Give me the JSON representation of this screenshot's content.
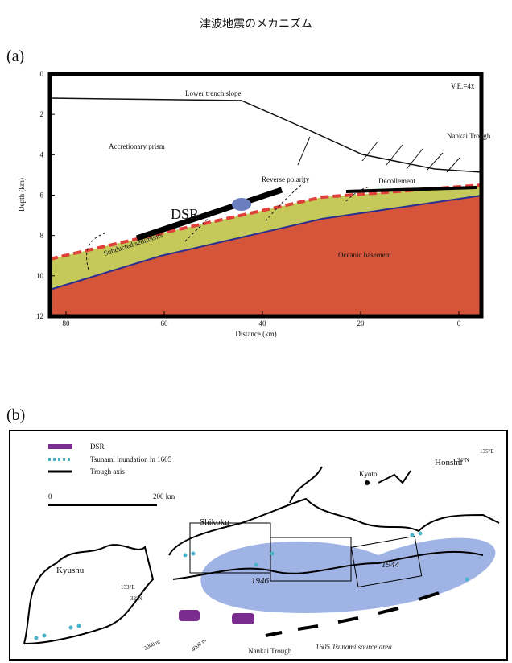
{
  "title": "津波地震のメカニズム",
  "panel_a": {
    "label": "(a)",
    "y_axis_label": "Depth (km)",
    "x_axis_label": "Distance (km)",
    "yticks": [
      0,
      2,
      4,
      6,
      8,
      10,
      12
    ],
    "xticks": [
      80,
      60,
      40,
      20,
      0
    ],
    "annotations": {
      "slope": "Lower trench slope",
      "ve": "V.E.=4x",
      "trough": "Nankai Trough",
      "prism": "Accretionary prism",
      "reverse": "Reverse polarity",
      "decollement": "Decollement",
      "dsr": "DSR",
      "sediments": "Subducted sediments",
      "basement": "Oceanic basement"
    }
  },
  "panel_b": {
    "label": "(b)",
    "legend": [
      "DSR",
      "Tsunami inundation in 1605",
      "Trough axis"
    ],
    "scale": [
      "0",
      "200 km"
    ],
    "places": {
      "kyoto": "Kyoto",
      "honshu": "Honshu",
      "shikoku": "Shikoku",
      "kyushu": "Kyushu",
      "lon1": "135°E",
      "lat1": "34°N",
      "lon2": "133°E",
      "lat2": "32°N",
      "y1946": "1946",
      "y1944": "1944",
      "trough": "Nankai Trough",
      "source": "1605 Tsunami source area",
      "d2000": "2000 m",
      "d4000": "4000 m"
    }
  }
}
